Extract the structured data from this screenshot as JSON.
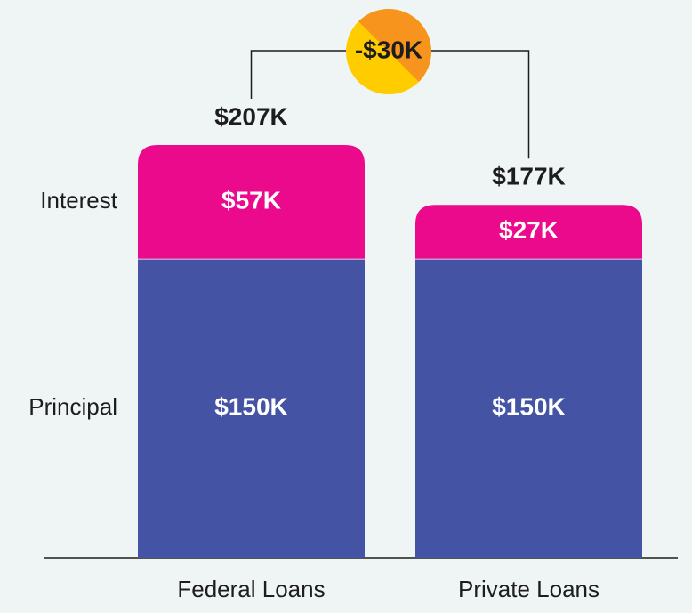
{
  "chart_data": {
    "type": "stacked_bar",
    "categories": [
      "Federal Loans",
      "Private Loans"
    ],
    "series": [
      {
        "name": "Principal",
        "color": "#4453a3",
        "values": [
          150,
          150
        ],
        "value_labels": [
          "$150K",
          "$150K"
        ]
      },
      {
        "name": "Interest",
        "color": "#ec0a8c",
        "values": [
          57,
          27
        ],
        "value_labels": [
          "$57K",
          "$27K"
        ]
      }
    ],
    "totals": {
      "values": [
        207,
        177
      ],
      "value_labels": [
        "$207K",
        "$177K"
      ]
    },
    "difference": {
      "value": -30,
      "label": "-$30K"
    }
  }
}
